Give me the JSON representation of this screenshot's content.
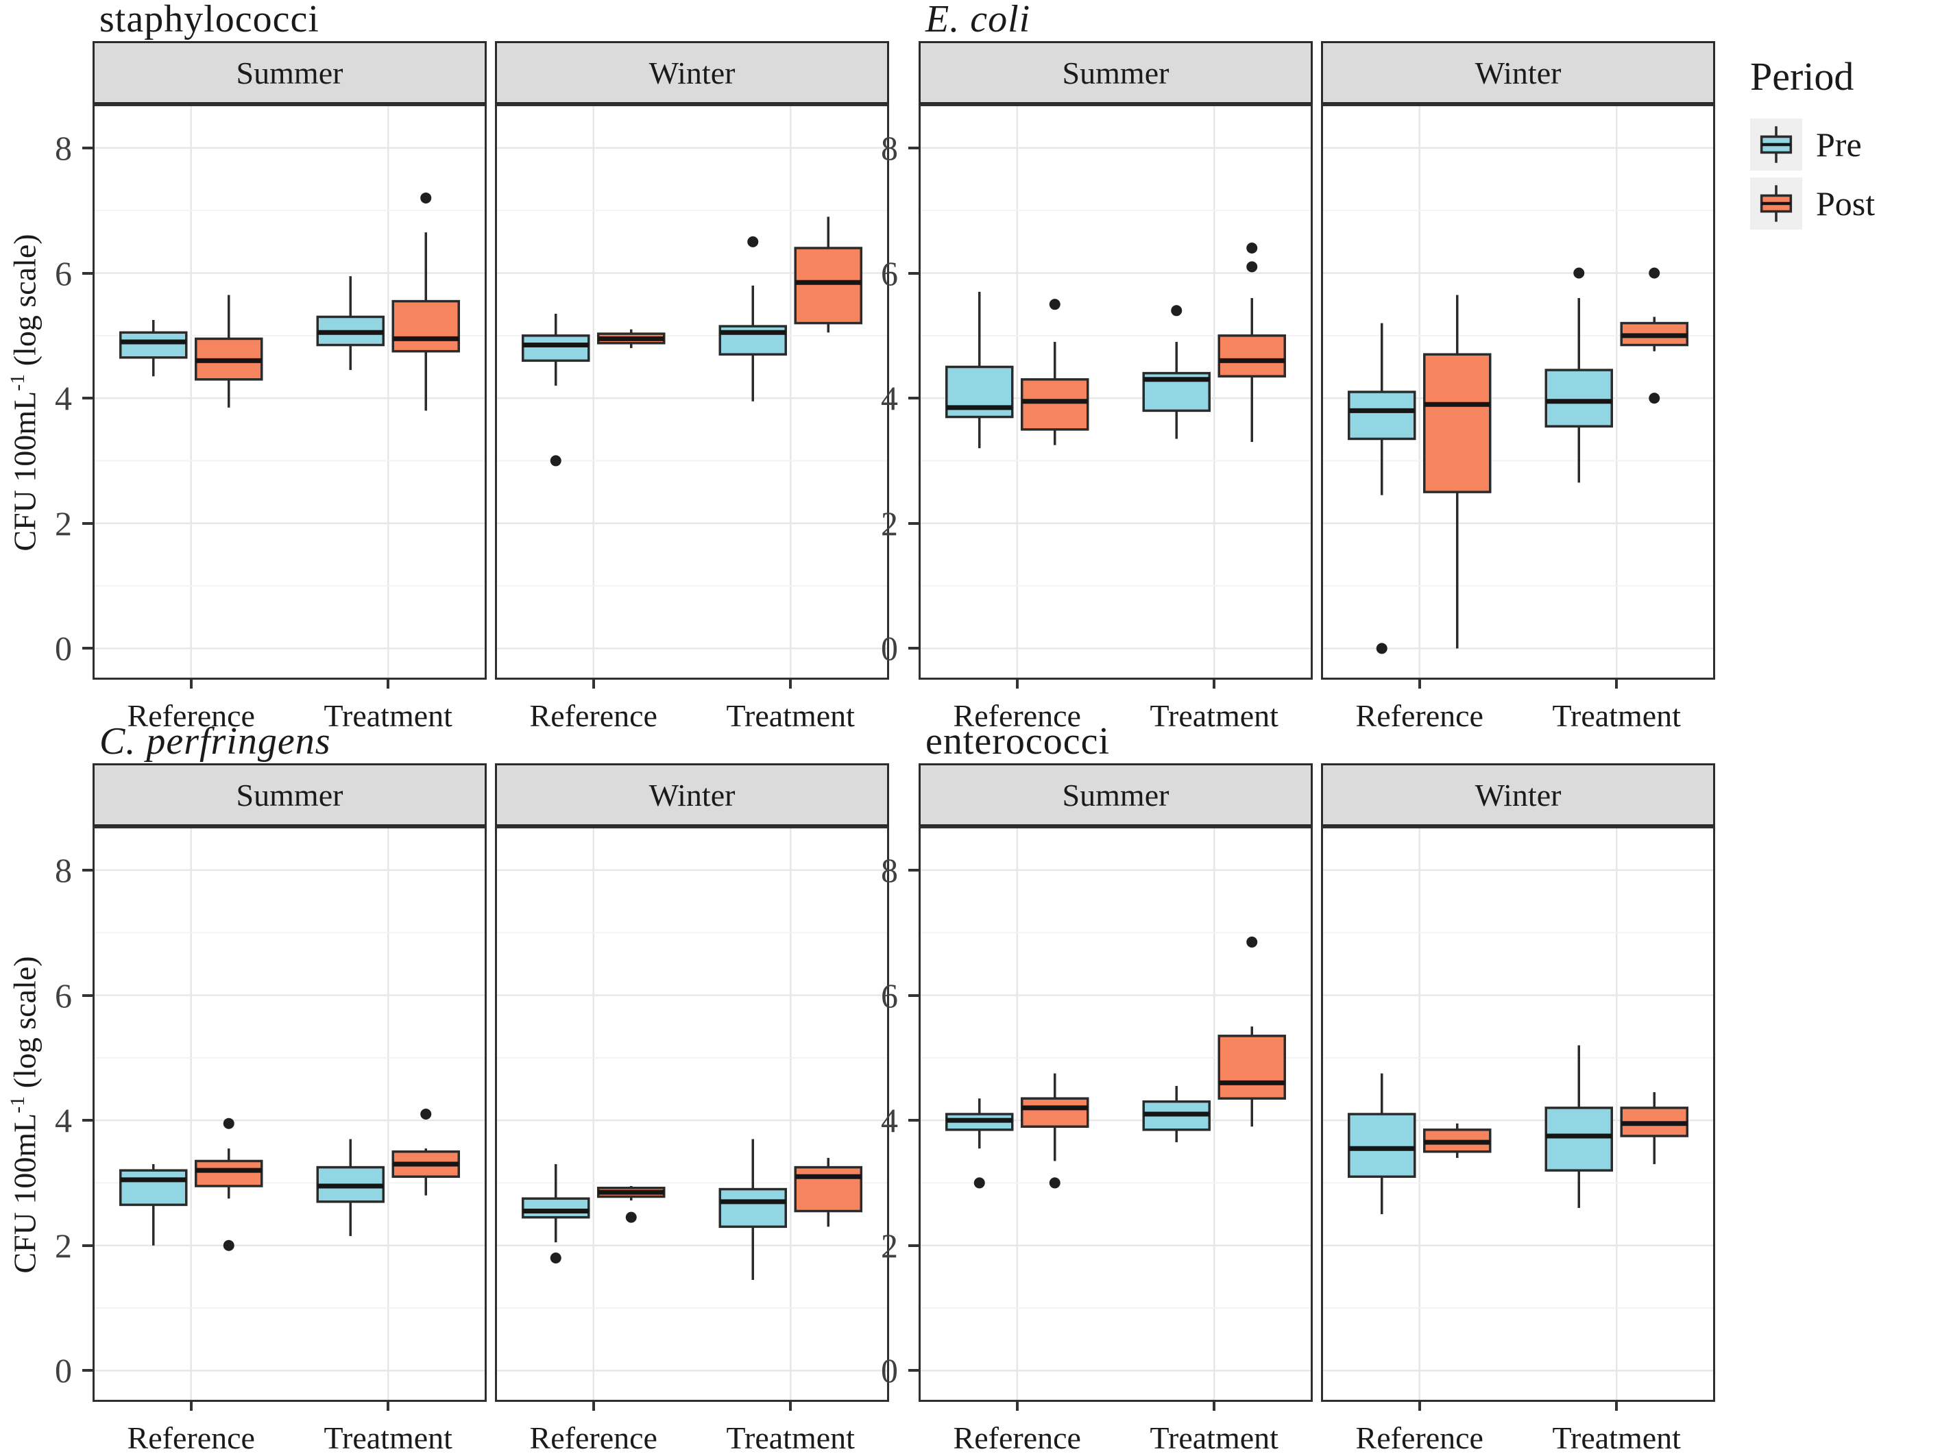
{
  "figure": {
    "y_axis_label_main": "CFU 100mL",
    "y_axis_label_sup": "-1",
    "y_axis_label_tail": " (log scale)",
    "y_ticks": [
      0,
      2,
      4,
      6,
      8
    ],
    "y_range": [
      -0.5,
      8.7
    ],
    "series_colors": {
      "Pre": "#92D5E3",
      "Post": "#F6845F"
    },
    "box_border_color": "#2b2b2b",
    "median_color": "#151515",
    "outlier_color": "#1f1f1f",
    "strip_background": "#dbdbdb",
    "grid_major_color": "#e7e7e7",
    "grid_minor_color": "#f3f3f3",
    "legend": {
      "title": "Period",
      "items": [
        {
          "label": "Pre",
          "color": "#92D5E3"
        },
        {
          "label": "Post",
          "color": "#F6845F"
        }
      ]
    }
  },
  "chart_data": [
    {
      "type": "boxplot",
      "title": "staphylococci",
      "italic": false,
      "categories": [
        "Reference",
        "Treatment"
      ],
      "series": [
        "Pre",
        "Post"
      ],
      "facets": [
        {
          "label": "Summer",
          "groups": [
            {
              "category": "Reference",
              "boxes": [
                {
                  "series": "Pre",
                  "low": 4.35,
                  "q1": 4.65,
                  "median": 4.9,
                  "q3": 5.05,
                  "high": 5.25,
                  "outliers": []
                },
                {
                  "series": "Post",
                  "low": 3.85,
                  "q1": 4.3,
                  "median": 4.6,
                  "q3": 4.95,
                  "high": 5.65,
                  "outliers": []
                }
              ]
            },
            {
              "category": "Treatment",
              "boxes": [
                {
                  "series": "Pre",
                  "low": 4.45,
                  "q1": 4.85,
                  "median": 5.05,
                  "q3": 5.3,
                  "high": 5.95,
                  "outliers": []
                },
                {
                  "series": "Post",
                  "low": 3.8,
                  "q1": 4.75,
                  "median": 4.95,
                  "q3": 5.55,
                  "high": 6.65,
                  "outliers": [
                    7.2
                  ]
                }
              ]
            }
          ]
        },
        {
          "label": "Winter",
          "groups": [
            {
              "category": "Reference",
              "boxes": [
                {
                  "series": "Pre",
                  "low": 4.2,
                  "q1": 4.6,
                  "median": 4.85,
                  "q3": 5.0,
                  "high": 5.35,
                  "outliers": [
                    3.0
                  ]
                },
                {
                  "series": "Post",
                  "low": 4.8,
                  "q1": 4.88,
                  "median": 4.95,
                  "q3": 5.03,
                  "high": 5.1,
                  "outliers": []
                }
              ]
            },
            {
              "category": "Treatment",
              "boxes": [
                {
                  "series": "Pre",
                  "low": 3.95,
                  "q1": 4.7,
                  "median": 5.05,
                  "q3": 5.15,
                  "high": 5.8,
                  "outliers": [
                    6.5
                  ]
                },
                {
                  "series": "Post",
                  "low": 5.05,
                  "q1": 5.2,
                  "median": 5.85,
                  "q3": 6.4,
                  "high": 6.9,
                  "outliers": []
                }
              ]
            }
          ]
        }
      ]
    },
    {
      "type": "boxplot",
      "title": "E. coli",
      "italic": true,
      "categories": [
        "Reference",
        "Treatment"
      ],
      "series": [
        "Pre",
        "Post"
      ],
      "facets": [
        {
          "label": "Summer",
          "groups": [
            {
              "category": "Reference",
              "boxes": [
                {
                  "series": "Pre",
                  "low": 3.2,
                  "q1": 3.7,
                  "median": 3.85,
                  "q3": 4.5,
                  "high": 5.7,
                  "outliers": []
                },
                {
                  "series": "Post",
                  "low": 3.25,
                  "q1": 3.5,
                  "median": 3.95,
                  "q3": 4.3,
                  "high": 4.9,
                  "outliers": [
                    5.5
                  ]
                }
              ]
            },
            {
              "category": "Treatment",
              "boxes": [
                {
                  "series": "Pre",
                  "low": 3.35,
                  "q1": 3.8,
                  "median": 4.3,
                  "q3": 4.4,
                  "high": 4.9,
                  "outliers": [
                    5.4
                  ]
                },
                {
                  "series": "Post",
                  "low": 3.3,
                  "q1": 4.35,
                  "median": 4.6,
                  "q3": 5.0,
                  "high": 5.6,
                  "outliers": [
                    6.1,
                    6.4
                  ]
                }
              ]
            }
          ]
        },
        {
          "label": "Winter",
          "groups": [
            {
              "category": "Reference",
              "boxes": [
                {
                  "series": "Pre",
                  "low": 2.45,
                  "q1": 3.35,
                  "median": 3.8,
                  "q3": 4.1,
                  "high": 5.2,
                  "outliers": [
                    0
                  ]
                },
                {
                  "series": "Post",
                  "low": 0,
                  "q1": 2.5,
                  "median": 3.9,
                  "q3": 4.7,
                  "high": 5.65,
                  "outliers": []
                }
              ]
            },
            {
              "category": "Treatment",
              "boxes": [
                {
                  "series": "Pre",
                  "low": 2.65,
                  "q1": 3.55,
                  "median": 3.95,
                  "q3": 4.45,
                  "high": 5.6,
                  "outliers": [
                    6.0
                  ]
                },
                {
                  "series": "Post",
                  "low": 4.75,
                  "q1": 4.85,
                  "median": 5.0,
                  "q3": 5.2,
                  "high": 5.3,
                  "outliers": [
                    6.0,
                    4.0
                  ]
                }
              ]
            }
          ]
        }
      ]
    },
    {
      "type": "boxplot",
      "title": "C. perfringens",
      "italic": true,
      "categories": [
        "Reference",
        "Treatment"
      ],
      "series": [
        "Pre",
        "Post"
      ],
      "facets": [
        {
          "label": "Summer",
          "groups": [
            {
              "category": "Reference",
              "boxes": [
                {
                  "series": "Pre",
                  "low": 2.0,
                  "q1": 2.65,
                  "median": 3.05,
                  "q3": 3.2,
                  "high": 3.3,
                  "outliers": []
                },
                {
                  "series": "Post",
                  "low": 2.75,
                  "q1": 2.95,
                  "median": 3.2,
                  "q3": 3.35,
                  "high": 3.55,
                  "outliers": [
                    3.95,
                    2.0
                  ]
                }
              ]
            },
            {
              "category": "Treatment",
              "boxes": [
                {
                  "series": "Pre",
                  "low": 2.15,
                  "q1": 2.7,
                  "median": 2.95,
                  "q3": 3.25,
                  "high": 3.7,
                  "outliers": []
                },
                {
                  "series": "Post",
                  "low": 2.8,
                  "q1": 3.1,
                  "median": 3.3,
                  "q3": 3.5,
                  "high": 3.55,
                  "outliers": [
                    4.1
                  ]
                }
              ]
            }
          ]
        },
        {
          "label": "Winter",
          "groups": [
            {
              "category": "Reference",
              "boxes": [
                {
                  "series": "Pre",
                  "low": 2.05,
                  "q1": 2.45,
                  "median": 2.55,
                  "q3": 2.75,
                  "high": 3.3,
                  "outliers": [
                    1.8
                  ]
                },
                {
                  "series": "Post",
                  "low": 2.72,
                  "q1": 2.78,
                  "median": 2.85,
                  "q3": 2.92,
                  "high": 2.95,
                  "outliers": [
                    2.45
                  ]
                }
              ]
            },
            {
              "category": "Treatment",
              "boxes": [
                {
                  "series": "Pre",
                  "low": 1.45,
                  "q1": 2.3,
                  "median": 2.7,
                  "q3": 2.9,
                  "high": 3.7,
                  "outliers": []
                },
                {
                  "series": "Post",
                  "low": 2.3,
                  "q1": 2.55,
                  "median": 3.1,
                  "q3": 3.25,
                  "high": 3.4,
                  "outliers": []
                }
              ]
            }
          ]
        }
      ]
    },
    {
      "type": "boxplot",
      "title": "enterococci",
      "italic": false,
      "categories": [
        "Reference",
        "Treatment"
      ],
      "series": [
        "Pre",
        "Post"
      ],
      "facets": [
        {
          "label": "Summer",
          "groups": [
            {
              "category": "Reference",
              "boxes": [
                {
                  "series": "Pre",
                  "low": 3.55,
                  "q1": 3.85,
                  "median": 4.0,
                  "q3": 4.1,
                  "high": 4.35,
                  "outliers": [
                    3.0
                  ]
                },
                {
                  "series": "Post",
                  "low": 3.35,
                  "q1": 3.9,
                  "median": 4.2,
                  "q3": 4.35,
                  "high": 4.75,
                  "outliers": [
                    3.0
                  ]
                }
              ]
            },
            {
              "category": "Treatment",
              "boxes": [
                {
                  "series": "Pre",
                  "low": 3.65,
                  "q1": 3.85,
                  "median": 4.1,
                  "q3": 4.3,
                  "high": 4.55,
                  "outliers": []
                },
                {
                  "series": "Post",
                  "low": 3.9,
                  "q1": 4.35,
                  "median": 4.6,
                  "q3": 5.35,
                  "high": 5.5,
                  "outliers": [
                    6.85
                  ]
                }
              ]
            }
          ]
        },
        {
          "label": "Winter",
          "groups": [
            {
              "category": "Reference",
              "boxes": [
                {
                  "series": "Pre",
                  "low": 2.5,
                  "q1": 3.1,
                  "median": 3.55,
                  "q3": 4.1,
                  "high": 4.75,
                  "outliers": []
                },
                {
                  "series": "Post",
                  "low": 3.4,
                  "q1": 3.5,
                  "median": 3.65,
                  "q3": 3.85,
                  "high": 3.95,
                  "outliers": []
                }
              ]
            },
            {
              "category": "Treatment",
              "boxes": [
                {
                  "series": "Pre",
                  "low": 2.6,
                  "q1": 3.2,
                  "median": 3.75,
                  "q3": 4.2,
                  "high": 5.2,
                  "outliers": []
                },
                {
                  "series": "Post",
                  "low": 3.3,
                  "q1": 3.75,
                  "median": 3.95,
                  "q3": 4.2,
                  "high": 4.45,
                  "outliers": []
                }
              ]
            }
          ]
        }
      ]
    }
  ]
}
